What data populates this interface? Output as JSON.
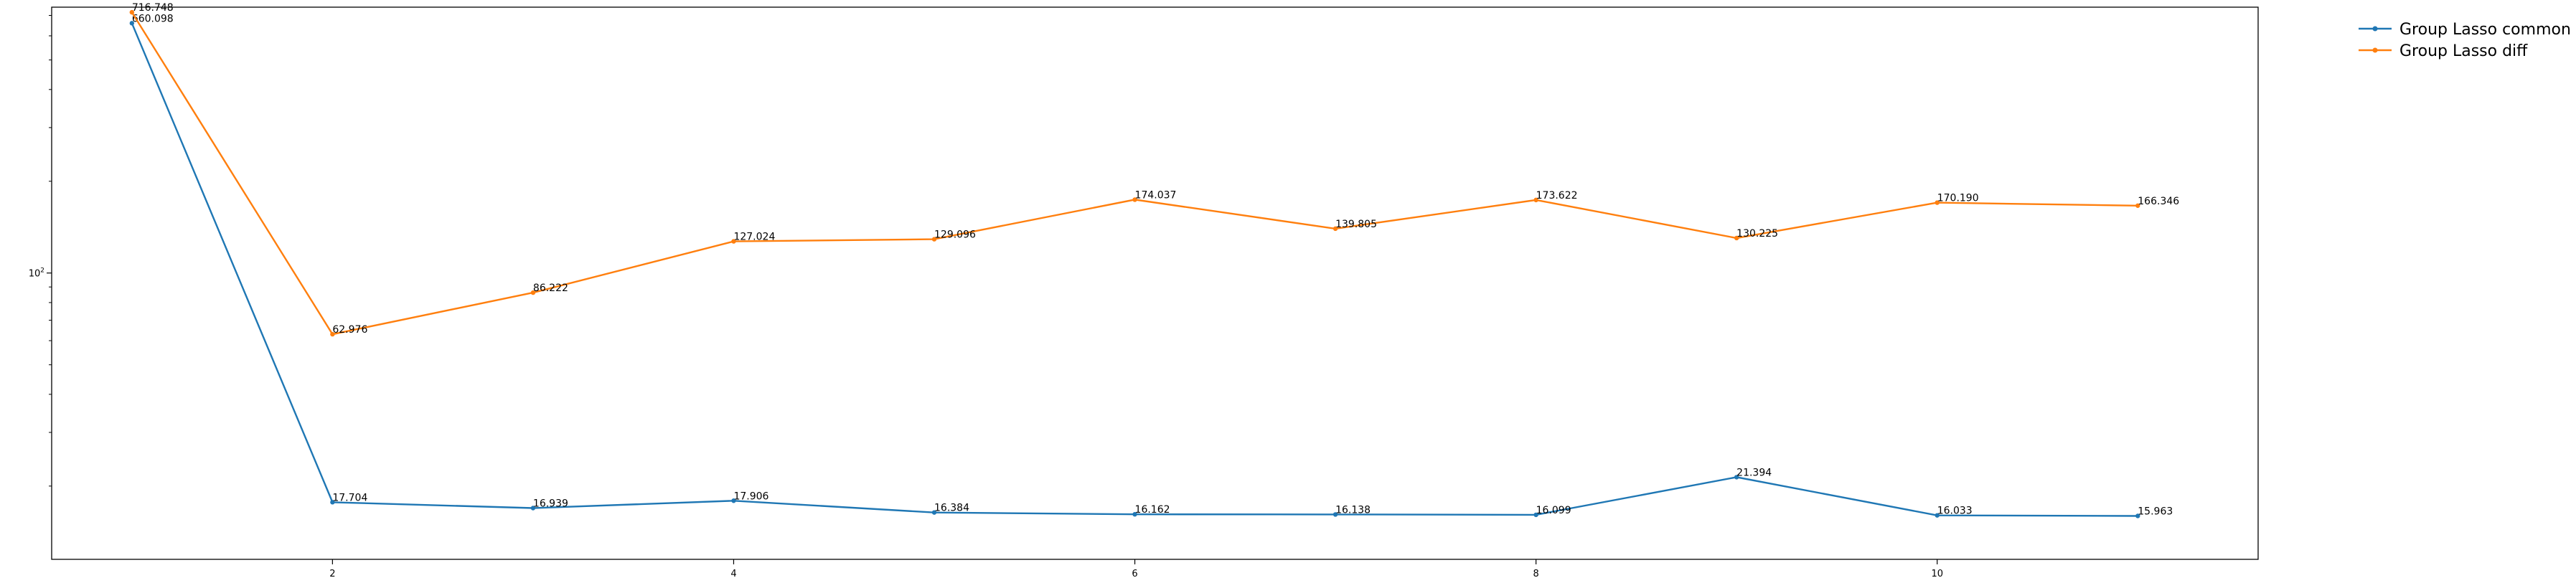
{
  "chart_data": {
    "type": "line",
    "title": "",
    "xlabel": "",
    "ylabel": "",
    "y_scale": "log",
    "x_ticks": [
      2,
      4,
      6,
      8,
      10
    ],
    "y_ticks": [
      {
        "value": 100,
        "label_base": "10",
        "label_exp": "2"
      }
    ],
    "xlim": [
      0.6,
      11.6
    ],
    "ylim": [
      11.5,
      745
    ],
    "grid": false,
    "legend_position": "outside-top-right",
    "x": [
      1,
      2,
      3,
      4,
      5,
      6,
      7,
      8,
      9,
      10,
      11
    ],
    "series": [
      {
        "name": "Group Lasso common",
        "color": "#1f77b4",
        "values": [
          660.098,
          17.704,
          16.939,
          17.906,
          16.384,
          16.162,
          16.138,
          16.099,
          21.394,
          16.033,
          15.963
        ],
        "labels": [
          "660.098",
          "17.704",
          "16.939",
          "17.906",
          "16.384",
          "16.162",
          "16.138",
          "16.099",
          "21.394",
          "16.033",
          "15.963"
        ]
      },
      {
        "name": "Group Lasso diff",
        "color": "#ff7f0e",
        "values": [
          716.748,
          62.976,
          86.222,
          127.024,
          129.096,
          174.037,
          139.805,
          173.622,
          130.225,
          170.19,
          166.346
        ],
        "labels": [
          "716.748",
          "62.976",
          "86.222",
          "127.024",
          "129.096",
          "174.037",
          "139.805",
          "173.622",
          "130.225",
          "170.190",
          "166.346"
        ]
      }
    ]
  }
}
